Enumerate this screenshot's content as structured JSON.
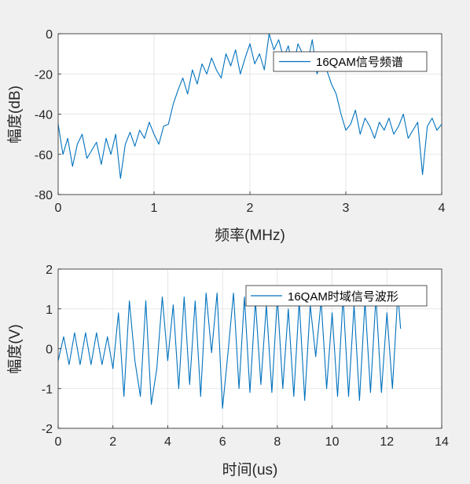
{
  "chart_data": [
    {
      "type": "line",
      "xlabel": "频率(MHz)",
      "ylabel": "幅度(dB)",
      "xlim": [
        0,
        4
      ],
      "ylim": [
        -80,
        0
      ],
      "xticks": [
        "0",
        "1",
        "2",
        "3",
        "4"
      ],
      "yticks": [
        "-80",
        "-60",
        "-40",
        "-20",
        "0"
      ],
      "grid": true,
      "legend_position": "top-right",
      "series": [
        {
          "name": "16QAM信号频谱",
          "color": "#0072bd",
          "x": [
            0.0,
            0.05,
            0.1,
            0.15,
            0.2,
            0.25,
            0.3,
            0.35,
            0.4,
            0.45,
            0.5,
            0.55,
            0.6,
            0.65,
            0.7,
            0.75,
            0.8,
            0.85,
            0.9,
            0.95,
            1.0,
            1.05,
            1.1,
            1.15,
            1.2,
            1.25,
            1.3,
            1.35,
            1.4,
            1.45,
            1.5,
            1.55,
            1.6,
            1.65,
            1.7,
            1.75,
            1.8,
            1.85,
            1.9,
            1.95,
            2.0,
            2.05,
            2.1,
            2.15,
            2.2,
            2.25,
            2.3,
            2.35,
            2.4,
            2.45,
            2.5,
            2.55,
            2.6,
            2.65,
            2.7,
            2.75,
            2.8,
            2.85,
            2.9,
            2.95,
            3.0,
            3.05,
            3.1,
            3.15,
            3.2,
            3.25,
            3.3,
            3.35,
            3.4,
            3.45,
            3.5,
            3.55,
            3.6,
            3.65,
            3.7,
            3.75,
            3.8,
            3.85,
            3.9,
            3.95,
            4.0
          ],
          "values": [
            -45,
            -60,
            -52,
            -66,
            -55,
            -50,
            -62,
            -58,
            -54,
            -65,
            -52,
            -60,
            -50,
            -72,
            -55,
            -49,
            -56,
            -48,
            -52,
            -44,
            -50,
            -55,
            -46,
            -45,
            -35,
            -28,
            -22,
            -30,
            -18,
            -25,
            -15,
            -20,
            -12,
            -18,
            -22,
            -10,
            -16,
            -8,
            -20,
            -12,
            -5,
            -15,
            -10,
            -18,
            0,
            -8,
            -3,
            -12,
            -6,
            -18,
            -5,
            -10,
            -15,
            -3,
            -20,
            -12,
            -18,
            -25,
            -30,
            -40,
            -48,
            -45,
            -38,
            -50,
            -42,
            -46,
            -52,
            -44,
            -48,
            -42,
            -50,
            -46,
            -40,
            -52,
            -48,
            -44,
            -70,
            -46,
            -42,
            -48,
            -45
          ]
        }
      ]
    },
    {
      "type": "line",
      "xlabel": "时间(us)",
      "ylabel": "幅度(V)",
      "xlim": [
        0,
        14
      ],
      "ylim": [
        -2,
        2
      ],
      "xticks": [
        "0",
        "2",
        "4",
        "6",
        "8",
        "10",
        "12",
        "14"
      ],
      "yticks": [
        "-2",
        "-1",
        "0",
        "1",
        "2"
      ],
      "grid": true,
      "legend_position": "top-right",
      "series": [
        {
          "name": "16QAM时域信号波形",
          "color": "#0072bd",
          "x": [
            0.0,
            0.2,
            0.4,
            0.6,
            0.8,
            1.0,
            1.2,
            1.4,
            1.6,
            1.8,
            2.0,
            2.2,
            2.4,
            2.6,
            2.8,
            3.0,
            3.2,
            3.4,
            3.6,
            3.8,
            4.0,
            4.2,
            4.4,
            4.6,
            4.8,
            5.0,
            5.2,
            5.4,
            5.6,
            5.8,
            6.0,
            6.2,
            6.4,
            6.6,
            6.8,
            7.0,
            7.2,
            7.4,
            7.6,
            7.8,
            8.0,
            8.2,
            8.4,
            8.6,
            8.8,
            9.0,
            9.2,
            9.4,
            9.6,
            9.8,
            10.0,
            10.2,
            10.4,
            10.6,
            10.8,
            11.0,
            11.2,
            11.4,
            11.6,
            11.8,
            12.0,
            12.2,
            12.4,
            12.5
          ],
          "values": [
            -0.3,
            0.3,
            -0.4,
            0.4,
            -0.4,
            0.4,
            -0.4,
            0.4,
            -0.4,
            0.3,
            -0.5,
            0.9,
            -1.2,
            1.2,
            -0.3,
            -1.2,
            1.2,
            -1.4,
            -0.5,
            1.3,
            -0.3,
            1.1,
            -1.0,
            1.3,
            -0.9,
            1.2,
            -1.2,
            1.4,
            -0.1,
            1.4,
            -1.5,
            -0.1,
            1.4,
            -1.0,
            1.3,
            -1.1,
            1.2,
            -0.9,
            1.1,
            -1.1,
            1.3,
            -1.0,
            1.0,
            -1.2,
            1.2,
            -1.3,
            1.1,
            -0.2,
            1.2,
            -1.0,
            0.9,
            -1.2,
            1.3,
            -1.2,
            1.1,
            -1.3,
            1.2,
            -1.1,
            1.3,
            -1.1,
            0.9,
            -1.0,
            1.4,
            0.5
          ]
        }
      ]
    }
  ]
}
